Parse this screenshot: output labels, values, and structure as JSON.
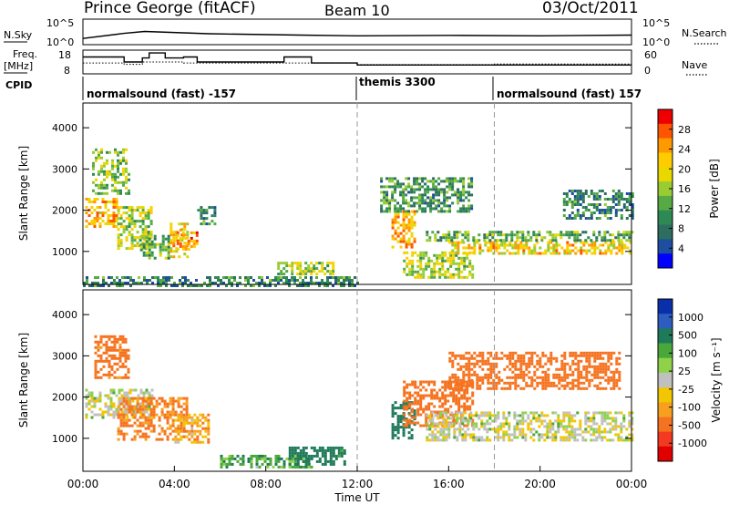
{
  "header": {
    "station": "Prince George (fitACF)",
    "beam": "Beam 10",
    "date": "03/Oct/2011"
  },
  "panels": {
    "nsky": {
      "left_label": "N.Sky",
      "left_ticks": [
        "10^5",
        "10^0"
      ],
      "right_ticks": [
        "10^5",
        "10^0"
      ],
      "right_label": "N.Search",
      "right_label_style": "dotted"
    },
    "freq": {
      "left_label_1": "Freq.",
      "left_label_2": "[MHz]",
      "left_ticks": [
        "18",
        "8"
      ],
      "right_ticks": [
        "60",
        "0"
      ],
      "right_label": "Nave",
      "right_label_style": "dotted"
    },
    "cpid": {
      "label": "CPID",
      "segments": [
        {
          "text": "normalsound (fast) -157",
          "start": "00:00",
          "end": "12:00"
        },
        {
          "text": "themis 3300",
          "start": "12:00",
          "end": "18:00"
        },
        {
          "text": "normalsound (fast) 157",
          "start": "18:00",
          "end": "24:00"
        }
      ]
    }
  },
  "x_axis": {
    "label": "Time UT",
    "ticks": [
      "00:00",
      "04:00",
      "08:00",
      "12:00",
      "16:00",
      "20:00",
      "00:00"
    ],
    "range_hours": [
      0,
      24
    ]
  },
  "colorbars": {
    "power": {
      "label": "Power [dB]",
      "ticks": [
        "28",
        "24",
        "20",
        "16",
        "12",
        "8",
        "4"
      ],
      "colors": [
        "#ee0000",
        "#ff5500",
        "#ff9900",
        "#ffcc00",
        "#e8d800",
        "#99cc33",
        "#55aa44",
        "#2e8a55",
        "#2e6e60",
        "#1e4ea0",
        "#0000ff"
      ]
    },
    "velocity": {
      "label": "Velocity [m s⁻¹]",
      "ticks": [
        "1000",
        "500",
        "100",
        "25",
        "-25",
        "-100",
        "-500",
        "-1000"
      ],
      "colors": [
        "#0a2faa",
        "#2c5dbf",
        "#1f7a5a",
        "#4aa83a",
        "#8fd24a",
        "#c0c0c0",
        "#f2c600",
        "#f7a020",
        "#f57320",
        "#f23a20",
        "#e00000"
      ]
    }
  },
  "chart_data": [
    {
      "type": "line",
      "title": "N.Sky / N.Search",
      "x_unit": "hours UT",
      "x": [
        0,
        1.8,
        2.7,
        5.5,
        9.5,
        12,
        16,
        20,
        24
      ],
      "series": [
        {
          "values": [
            10,
            150,
            400,
            120,
            60,
            40,
            50,
            40,
            60
          ]
        }
      ],
      "yscale": "log",
      "ylim": [
        1,
        100000
      ]
    },
    {
      "type": "line",
      "x_unit": "hours UT",
      "series": [
        {
          "name": "Freq. [MHz]",
          "x": [
            0,
            1.8,
            1.8,
            2.6,
            2.6,
            2.9,
            2.9,
            3.6,
            3.6,
            4.4,
            4.4,
            5.0,
            5.0,
            8.8,
            8.8,
            10.0,
            10.0,
            12.0,
            12.0,
            24.0
          ],
          "values": [
            15.5,
            15.5,
            13,
            13,
            15,
            15,
            17.5,
            17.5,
            15,
            15,
            15.5,
            15.5,
            13,
            13,
            15.5,
            15.5,
            12.5,
            12.5,
            11.5,
            11.5
          ]
        },
        {
          "name": "Nave",
          "x": [
            0,
            1.8,
            1.8,
            2.6,
            2.6,
            4.4,
            4.4,
            12.0,
            12.0,
            18.0,
            18.0,
            24.0
          ],
          "values": [
            27,
            27,
            23,
            23,
            30,
            30,
            27,
            27,
            22,
            22,
            24,
            24
          ]
        }
      ],
      "ylim_freq": [
        8,
        18
      ],
      "ylim_nave": [
        0,
        60
      ]
    },
    {
      "type": "heatmap",
      "title": "Power",
      "xlabel": "Time UT",
      "ylabel": "Slant Range [km]",
      "ylim": [
        200,
        4600
      ],
      "xlim": [
        0,
        24
      ],
      "yticks": [
        1000,
        2000,
        3000,
        4000
      ],
      "unit": "dB",
      "blobs": [
        {
          "t": [
            0.1,
            1.5
          ],
          "r": [
            1600,
            2300
          ],
          "v": 24
        },
        {
          "t": [
            0.4,
            2.0
          ],
          "r": [
            2400,
            3500
          ],
          "v": 16
        },
        {
          "t": [
            1.5,
            3.0
          ],
          "r": [
            1100,
            2100
          ],
          "v": 18
        },
        {
          "t": [
            2.5,
            3.8
          ],
          "r": [
            850,
            1400
          ],
          "v": 14
        },
        {
          "t": [
            3.8,
            4.6
          ],
          "r": [
            850,
            1700
          ],
          "v": 22
        },
        {
          "t": [
            4.1,
            5.0
          ],
          "r": [
            1050,
            1550
          ],
          "v": 26
        },
        {
          "t": [
            5.0,
            5.8
          ],
          "r": [
            1700,
            2100
          ],
          "v": 10
        },
        {
          "t": [
            8.5,
            11.0
          ],
          "r": [
            450,
            750
          ],
          "v": 18
        },
        {
          "t": [
            0.0,
            12.0
          ],
          "r": [
            200,
            400
          ],
          "v": 10
        },
        {
          "t": [
            13.5,
            14.5
          ],
          "r": [
            1100,
            2000
          ],
          "v": 24
        },
        {
          "t": [
            14.0,
            17.0
          ],
          "r": [
            400,
            1000
          ],
          "v": 18
        },
        {
          "t": [
            16.0,
            24.0
          ],
          "r": [
            950,
            1250
          ],
          "v": 22
        },
        {
          "t": [
            15.0,
            24.0
          ],
          "r": [
            1250,
            1500
          ],
          "v": 14
        },
        {
          "t": [
            13.0,
            17.0
          ],
          "r": [
            2000,
            2800
          ],
          "v": 12
        },
        {
          "t": [
            21.0,
            24.0
          ],
          "r": [
            1800,
            2500
          ],
          "v": 10
        }
      ]
    },
    {
      "type": "heatmap",
      "title": "Velocity",
      "xlabel": "Time UT",
      "ylabel": "Slant Range [km]",
      "ylim": [
        200,
        4600
      ],
      "xlim": [
        0,
        24
      ],
      "yticks": [
        1000,
        2000,
        3000,
        4000
      ],
      "unit": "m s⁻¹",
      "blobs": [
        {
          "t": [
            0.1,
            3.0
          ],
          "r": [
            1500,
            2200
          ],
          "v": 0
        },
        {
          "t": [
            0.5,
            2.0
          ],
          "r": [
            2500,
            3500
          ],
          "v": -150
        },
        {
          "t": [
            1.5,
            4.5
          ],
          "r": [
            1000,
            2000
          ],
          "v": -120
        },
        {
          "t": [
            4.0,
            5.5
          ],
          "r": [
            900,
            1600
          ],
          "v": -80
        },
        {
          "t": [
            6.0,
            10.0
          ],
          "r": [
            300,
            600
          ],
          "v": 80
        },
        {
          "t": [
            9.0,
            11.5
          ],
          "r": [
            400,
            800
          ],
          "v": 150
        },
        {
          "t": [
            13.5,
            14.5
          ],
          "r": [
            1000,
            1900
          ],
          "v": 200
        },
        {
          "t": [
            14.0,
            17.0
          ],
          "r": [
            1300,
            2400
          ],
          "v": -200
        },
        {
          "t": [
            15.0,
            24.0
          ],
          "r": [
            950,
            1650
          ],
          "v": 0
        },
        {
          "t": [
            16.0,
            23.5
          ],
          "r": [
            2200,
            3100
          ],
          "v": -200
        }
      ]
    }
  ]
}
